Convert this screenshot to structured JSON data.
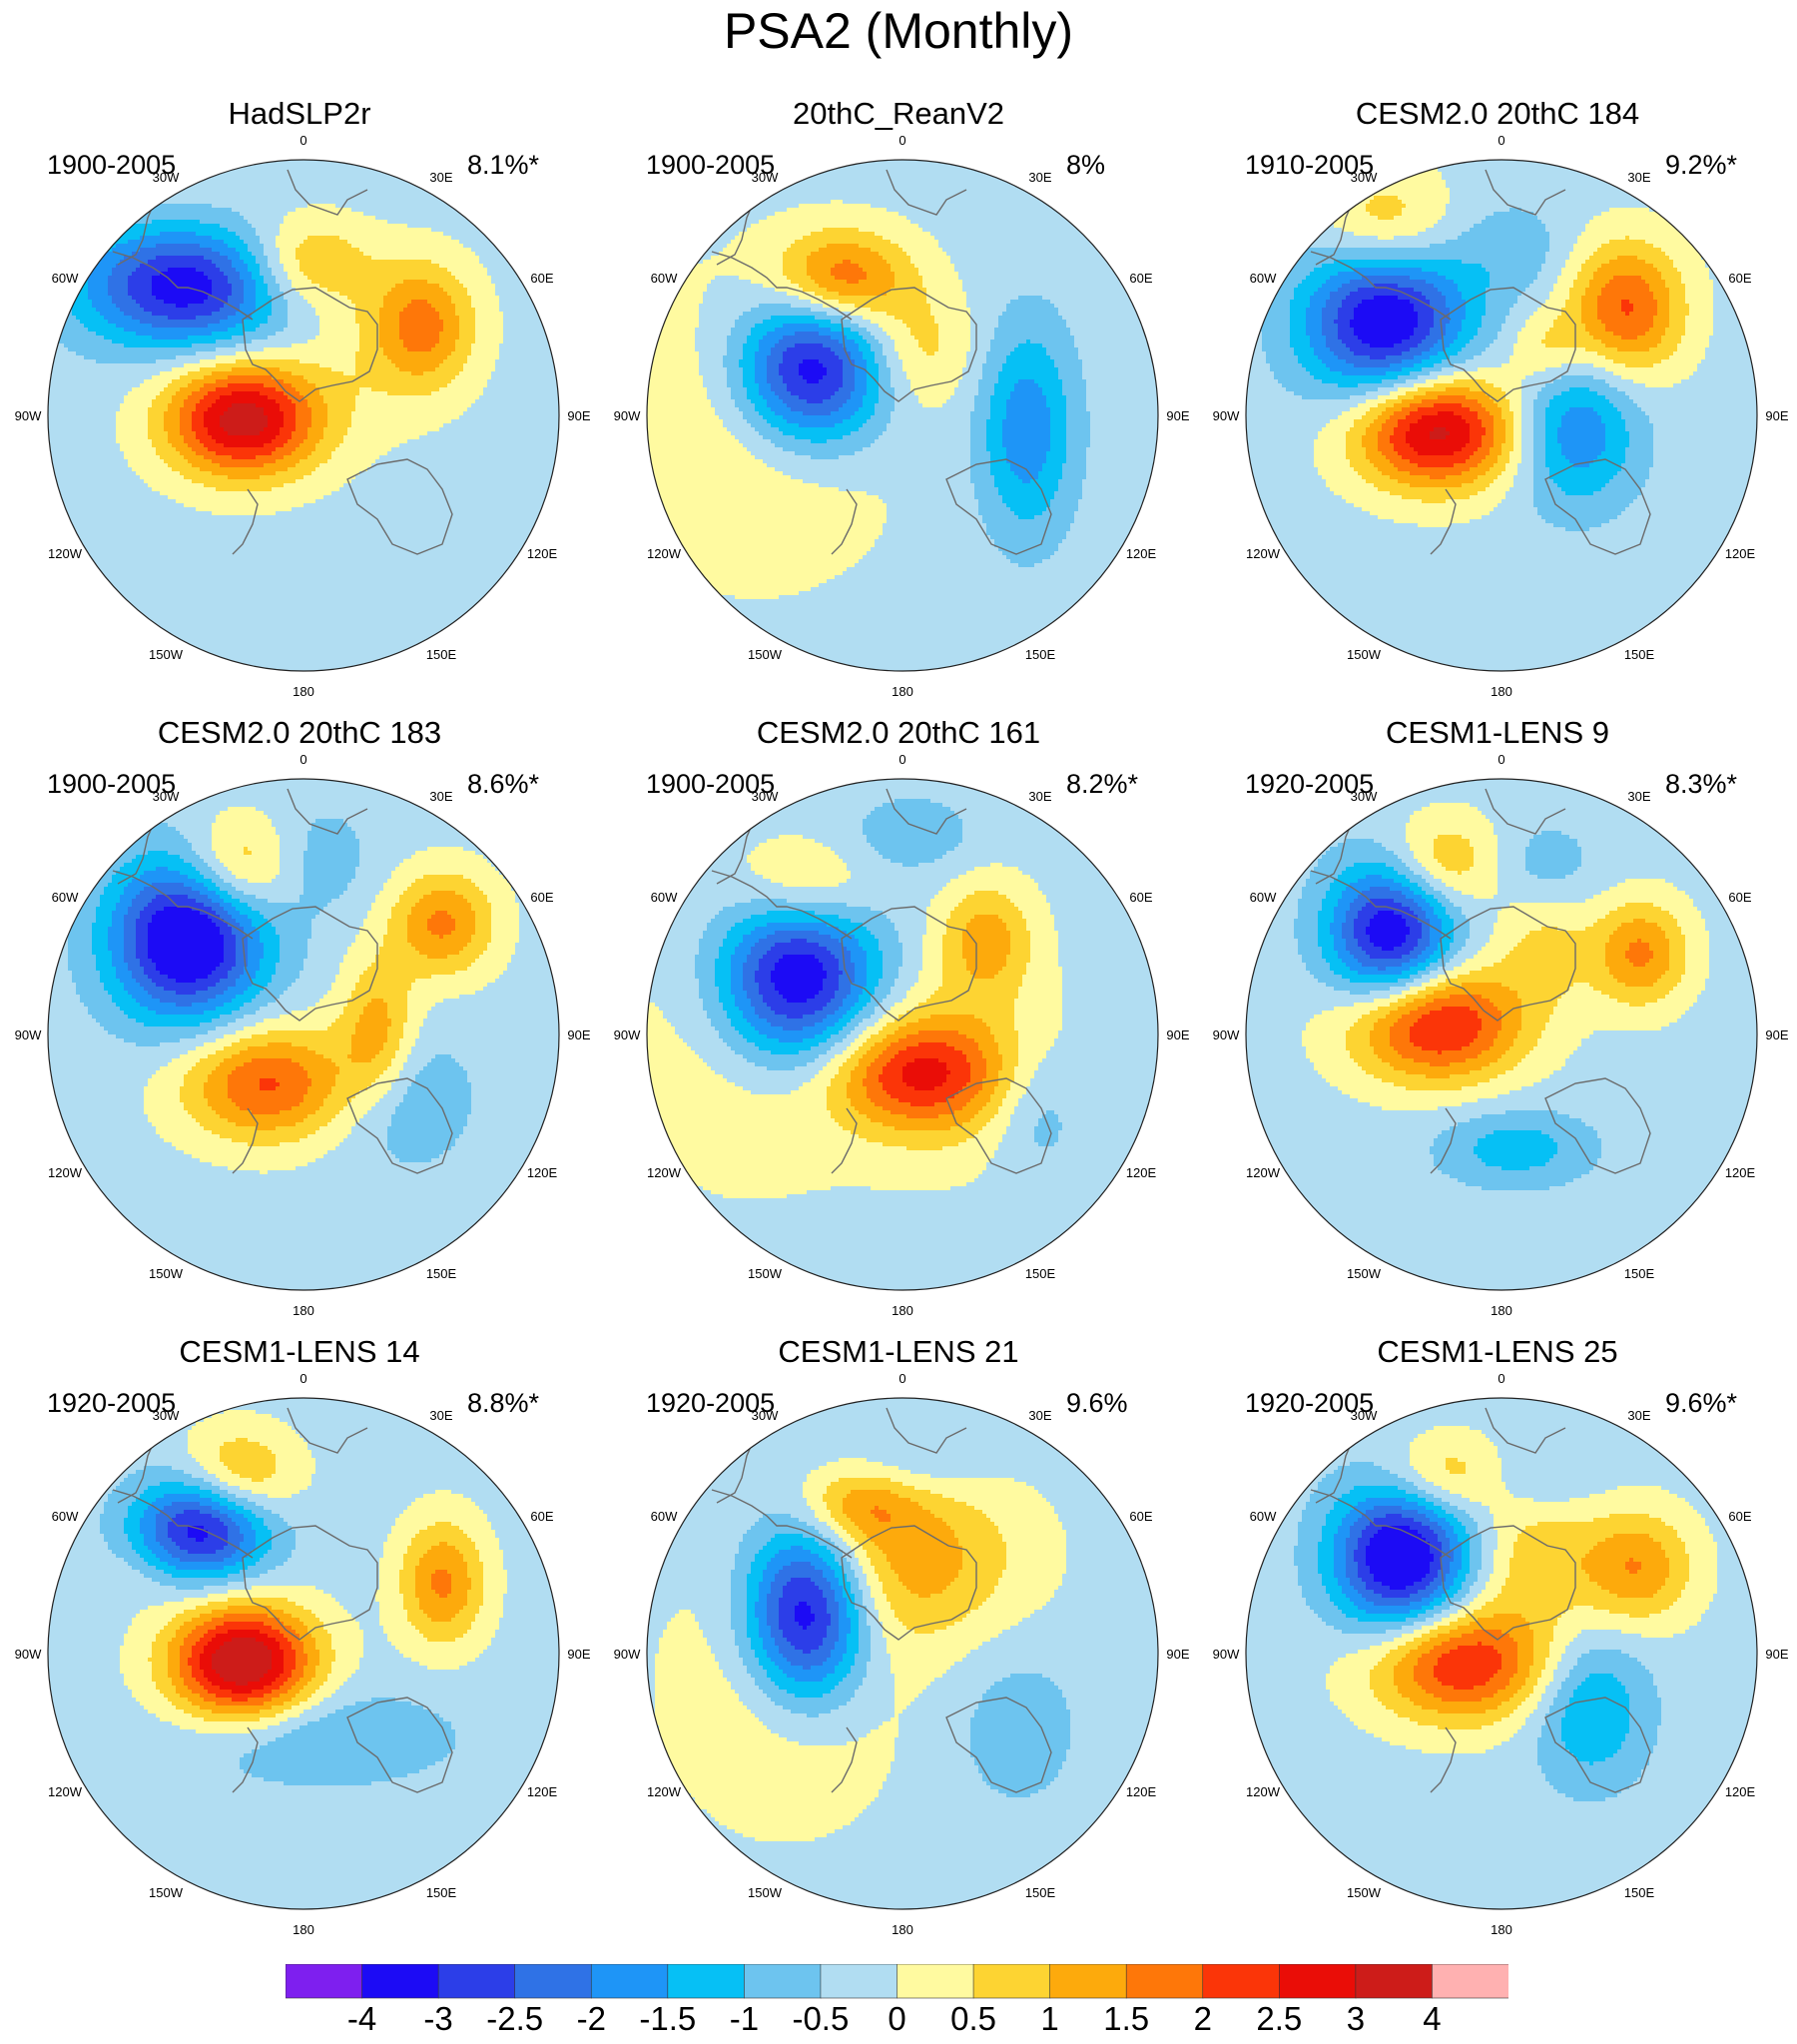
{
  "title": "PSA2 (Monthly)",
  "panels": [
    {
      "title": "HadSLP2r",
      "period": "1900-2005",
      "variance": "8.1%*"
    },
    {
      "title": "20thC_ReanV2",
      "period": "1900-2005",
      "variance": "8%"
    },
    {
      "title": "CESM2.0 20thC 184",
      "period": "1910-2005",
      "variance": "9.2%*"
    },
    {
      "title": "CESM2.0 20thC 183",
      "period": "1900-2005",
      "variance": "8.6%*"
    },
    {
      "title": "CESM2.0 20thC 161",
      "period": "1900-2005",
      "variance": "8.2%*"
    },
    {
      "title": "CESM1-LENS 9",
      "period": "1920-2005",
      "variance": "8.3%*"
    },
    {
      "title": "CESM1-LENS 14",
      "period": "1920-2005",
      "variance": "8.8%*"
    },
    {
      "title": "CESM1-LENS 21",
      "period": "1920-2005",
      "variance": "9.6%"
    },
    {
      "title": "CESM1-LENS 25",
      "period": "1920-2005",
      "variance": "9.6%*"
    }
  ],
  "longitude_labels": [
    "0",
    "30E",
    "60E",
    "90E",
    "120E",
    "150E",
    "180",
    "150W",
    "120W",
    "90W",
    "60W",
    "30W"
  ],
  "colorbar": {
    "labels": [
      "-4",
      "-3",
      "-2.5",
      "-2",
      "-1.5",
      "-1",
      "-0.5",
      "0",
      "0.5",
      "1",
      "1.5",
      "2",
      "2.5",
      "3",
      "4"
    ],
    "colors": [
      "#7e1fef",
      "#1c0bf5",
      "#2c3ee8",
      "#2f72e6",
      "#1e95f7",
      "#06c0f5",
      "#6dc4ef",
      "#b1ddf2",
      "#fffaa0",
      "#fdd432",
      "#fdaa0c",
      "#fe7709",
      "#fb3508",
      "#ea0d07",
      "#cd1c19",
      "#ffb1b1"
    ]
  },
  "palette": {
    "ocean": "#b1ddf2",
    "land": "#555555",
    "coast": "#6b6b6b"
  }
}
